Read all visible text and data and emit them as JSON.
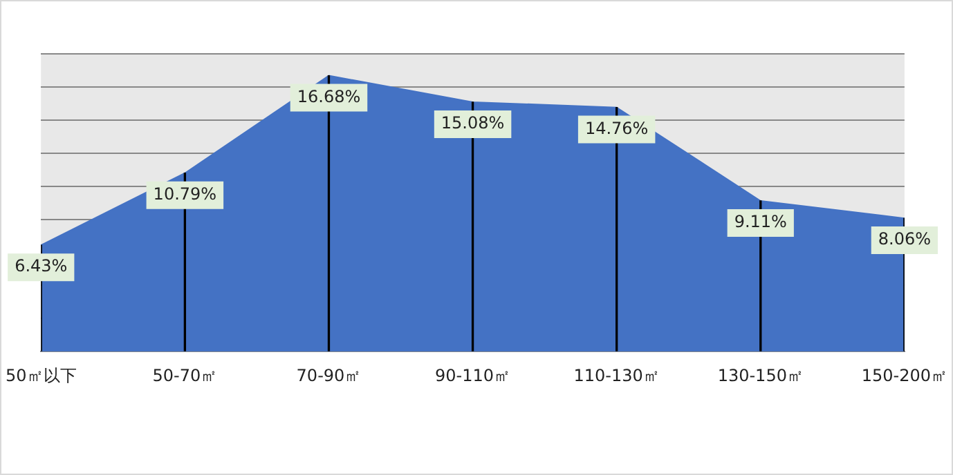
{
  "chart_data": {
    "type": "area",
    "categories": [
      "50㎡以下",
      "50-70㎡",
      "70-90㎡",
      "90-110㎡",
      "110-130㎡",
      "130-150㎡",
      "150-200㎡"
    ],
    "series": [
      {
        "color": "#4472c4",
        "values": [
          6.43,
          10.79,
          16.68,
          15.08,
          14.76,
          9.11,
          8.06
        ],
        "value_labels": [
          "6.43%",
          "10.79%",
          "16.68%",
          "15.08%",
          "14.76%",
          "9.11%",
          "8.06%"
        ]
      },
      {
        "type": "bar",
        "color": "#000000",
        "values": [
          6.43,
          10.79,
          16.68,
          15.08,
          14.76,
          9.11,
          8.06
        ]
      }
    ],
    "ylim": [
      0,
      18
    ],
    "grid": "y",
    "tick_labels": "x",
    "legend": false
  }
}
